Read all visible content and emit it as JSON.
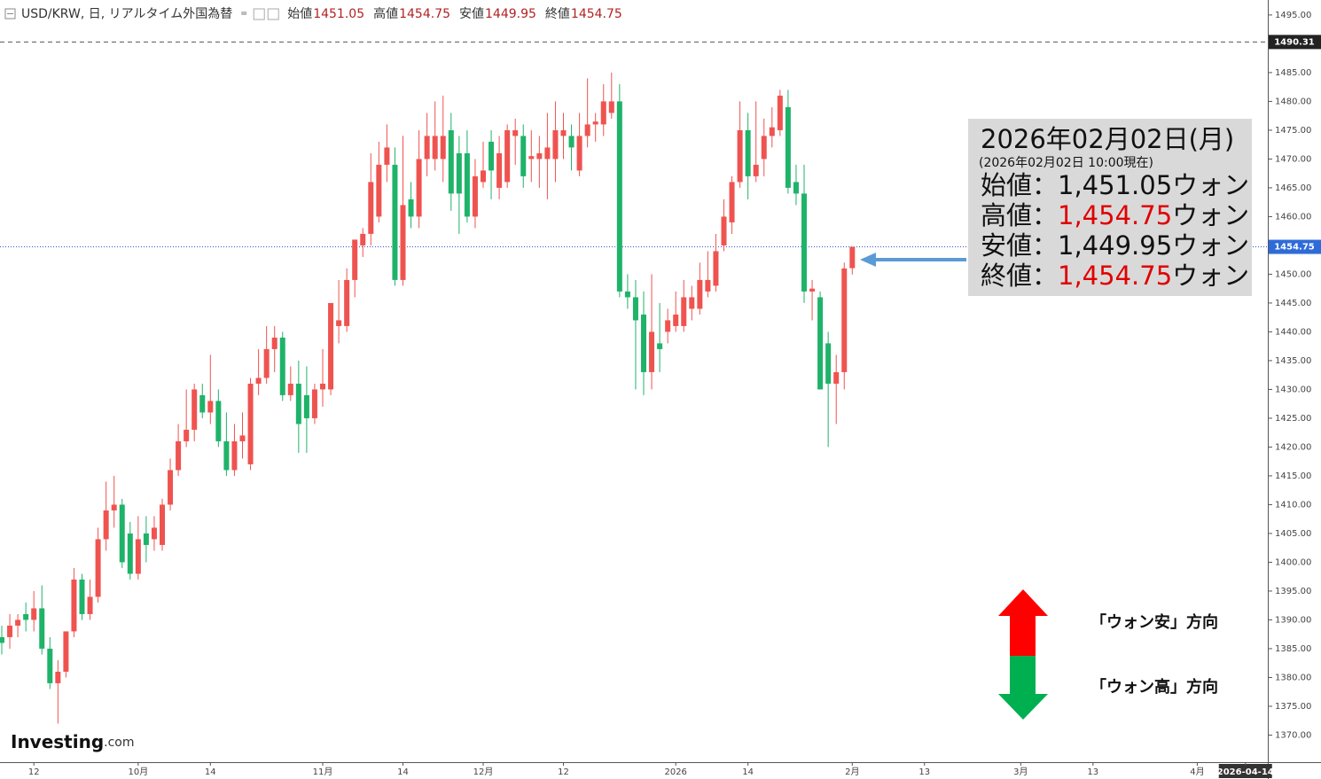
{
  "chart_data": {
    "type": "candlestick",
    "title": "USD/KRW, 日, リアルタイム外国為替",
    "ohlc_header": [
      {
        "label": "始値",
        "value": "1451.05"
      },
      {
        "label": "高値",
        "value": "1454.75"
      },
      {
        "label": "安値",
        "value": "1449.95"
      },
      {
        "label": "終値",
        "value": "1454.75"
      }
    ],
    "up_color": "#ef5350",
    "down_color": "#1fb36a",
    "ylim": [
      1365.3,
      1497.6
    ],
    "yticks": [
      {
        "value": 1370,
        "label": "1370.00"
      },
      {
        "value": 1375,
        "label": "1375.00"
      },
      {
        "value": 1380,
        "label": "1380.00"
      },
      {
        "value": 1385,
        "label": "1385.00"
      },
      {
        "value": 1390,
        "label": "1390.00"
      },
      {
        "value": 1395,
        "label": "1395.00"
      },
      {
        "value": 1400,
        "label": "1400.00"
      },
      {
        "value": 1405,
        "label": "1405.00"
      },
      {
        "value": 1410,
        "label": "1410.00"
      },
      {
        "value": 1415,
        "label": "1415.00"
      },
      {
        "value": 1420,
        "label": "1420.00"
      },
      {
        "value": 1425,
        "label": "1425.00"
      },
      {
        "value": 1430,
        "label": "1430.00"
      },
      {
        "value": 1435,
        "label": "1435.00"
      },
      {
        "value": 1440,
        "label": "1440.00"
      },
      {
        "value": 1445,
        "label": "1445.00"
      },
      {
        "value": 1450,
        "label": "1450.00"
      },
      {
        "value": 1455,
        "label": "1455.00"
      },
      {
        "value": 1460,
        "label": "1460.00"
      },
      {
        "value": 1465,
        "label": "1465.00"
      },
      {
        "value": 1470,
        "label": "1470.00"
      },
      {
        "value": 1475,
        "label": "1475.00"
      },
      {
        "value": 1480,
        "label": "1480.00"
      },
      {
        "value": 1485,
        "label": "1485.00"
      },
      {
        "value": 1490,
        "label": "1490.00"
      },
      {
        "value": 1495,
        "label": "1495.00"
      }
    ],
    "reference_lines": [
      {
        "value": 1490.31,
        "style": "dashed",
        "color": "#555555",
        "label_bg": "#222222"
      },
      {
        "value": 1454.75,
        "style": "dotted",
        "color": "#3a4fd0",
        "label_bg": "#2f6bd8"
      }
    ],
    "categories": [
      null,
      null,
      null,
      null,
      "12",
      null,
      null,
      null,
      null,
      null,
      null,
      null,
      null,
      null,
      null,
      null,
      null,
      "10月",
      null,
      null,
      null,
      null,
      null,
      null,
      null,
      null,
      "14",
      null,
      null,
      null,
      null,
      null,
      null,
      null,
      null,
      null,
      null,
      null,
      null,
      null,
      "11月",
      null,
      null,
      null,
      null,
      null,
      null,
      null,
      null,
      null,
      "14",
      null,
      null,
      null,
      null,
      null,
      null,
      null,
      null,
      null,
      "12月",
      null,
      null,
      null,
      null,
      null,
      null,
      null,
      null,
      null,
      "12",
      null,
      null,
      null,
      null,
      null,
      null,
      null,
      null,
      null,
      null,
      null,
      null,
      null,
      "2026",
      null,
      null,
      null,
      null,
      null,
      null,
      null,
      null,
      "14",
      null,
      null,
      null,
      null,
      null,
      null,
      null,
      null,
      null,
      null,
      null,
      null,
      "2月",
      null,
      null,
      null,
      null,
      null,
      null,
      null,
      null,
      "13",
      null,
      null,
      null,
      null,
      null,
      null,
      null,
      null,
      null,
      null,
      null,
      "3月",
      null,
      null,
      null,
      null,
      null,
      null,
      null,
      null,
      "13",
      null,
      null,
      null,
      null,
      null,
      null,
      null,
      null,
      null,
      null,
      null,
      null,
      "4月",
      null,
      null,
      null,
      null,
      null,
      "2026-04-14"
    ],
    "open": [
      1387,
      1387,
      1389,
      1391,
      1390,
      1392,
      1385,
      1379,
      1381,
      1388,
      1397,
      1391,
      1394,
      1404,
      1409,
      1410,
      1405,
      1398,
      1405,
      1404,
      1403,
      1410,
      1416,
      1421,
      1423,
      1429,
      1426,
      1428,
      1421,
      1416,
      1421,
      1417,
      1431,
      1432,
      1437,
      1439,
      1429,
      1431,
      1429,
      1425,
      1430,
      1430,
      1441,
      1441,
      1449,
      1455,
      1457,
      1460,
      1469,
      1469,
      1449,
      1463,
      1460,
      1470,
      1470,
      1470,
      1475,
      1471,
      1471,
      1460,
      1466,
      1473,
      1465,
      1466,
      1474,
      1474,
      1470,
      1470,
      1470,
      1470,
      1474,
      1474,
      1468,
      1474,
      1476,
      1476,
      1478,
      1480,
      1447,
      1446,
      1443,
      1433,
      1438,
      1440,
      1441,
      1441,
      1444,
      1444,
      1447,
      1448,
      1455,
      1459,
      1466,
      1475,
      1467,
      1470,
      1474,
      1475,
      1479,
      1466,
      1464,
      1447,
      1446,
      1438,
      1431,
      1433,
      1451.05,
      null,
      null,
      null,
      null,
      null,
      null,
      null,
      null,
      null,
      null,
      null,
      null,
      null,
      null,
      null,
      null,
      null,
      null,
      null,
      null,
      null,
      null,
      null,
      null,
      null,
      null,
      null,
      null,
      null,
      null,
      null,
      null,
      null,
      null,
      null,
      null,
      null,
      null,
      null,
      null,
      null,
      null,
      null,
      null,
      null,
      null,
      null,
      null,
      null
    ],
    "high": [
      1389,
      1391,
      1391,
      1393,
      1395,
      1396,
      1387,
      1383,
      1388,
      1399,
      1398,
      1397,
      1406,
      1414,
      1415,
      1411,
      1407,
      1408,
      1408,
      1408,
      1411,
      1418,
      1424,
      1430,
      1431,
      1431,
      1436,
      1430,
      1426,
      1424,
      1426,
      1432,
      1437,
      1441,
      1441,
      1440,
      1434,
      1435,
      1434,
      1431,
      1437,
      1445,
      1449,
      1451,
      1456,
      1458,
      1471,
      1473,
      1476,
      1472,
      1474,
      1466,
      1475,
      1478,
      1480,
      1481,
      1478,
      1474,
      1475,
      1470,
      1473,
      1475,
      1474,
      1476,
      1477,
      1476,
      1475,
      1474,
      1478,
      1480,
      1478,
      1476,
      1478,
      1484,
      1478,
      1483,
      1485,
      1483,
      1450,
      1449,
      1447,
      1450,
      1445,
      1444,
      1447,
      1449,
      1448,
      1452,
      1454,
      1457,
      1463,
      1467,
      1480,
      1478,
      1480,
      1477,
      1479,
      1482,
      1482,
      1469,
      1469,
      1449,
      1447,
      1440,
      1436,
      1452,
      1454.75,
      null,
      null,
      null,
      null,
      null,
      null,
      null,
      null,
      null,
      null,
      null,
      null,
      null,
      null,
      null,
      null,
      null,
      null,
      null,
      null,
      null,
      null,
      null,
      null,
      null,
      null,
      null,
      null,
      null,
      null,
      null,
      null,
      null,
      null,
      null,
      null,
      null,
      null,
      null,
      null,
      null,
      null,
      null,
      null,
      null,
      null,
      null,
      null,
      null
    ],
    "low": [
      1384,
      1385,
      1387,
      1388,
      1388,
      1384,
      1378,
      1372,
      1380,
      1387,
      1390,
      1390,
      1393,
      1402,
      1406,
      1399,
      1397,
      1397,
      1400,
      1402,
      1402,
      1409,
      1415,
      1420,
      1421,
      1425,
      1424,
      1420,
      1415,
      1415,
      1418,
      1416,
      1429,
      1431,
      1433,
      1428,
      1428,
      1419,
      1419,
      1424,
      1427,
      1429,
      1438,
      1440,
      1446,
      1453,
      1455,
      1459,
      1466,
      1448,
      1448,
      1458,
      1458,
      1467,
      1468,
      1466,
      1461,
      1457,
      1459,
      1458,
      1465,
      1463,
      1463,
      1465,
      1469,
      1465,
      1466,
      1465,
      1463,
      1466,
      1470,
      1468,
      1467,
      1472,
      1473,
      1474,
      1477,
      1446,
      1444,
      1430,
      1429,
      1430,
      1433,
      1438,
      1440,
      1440,
      1442,
      1443,
      1446,
      1447,
      1454,
      1457,
      1465,
      1463,
      1466,
      1467,
      1472,
      1474,
      1464,
      1462,
      1445,
      1442,
      1430,
      1420,
      1424,
      1430,
      1449.95,
      null,
      null,
      null,
      null,
      null,
      null,
      null,
      null,
      null,
      null,
      null,
      null,
      null,
      null,
      null,
      null,
      null,
      null,
      null,
      null,
      null,
      null,
      null,
      null,
      null,
      null,
      null,
      null,
      null,
      null,
      null,
      null,
      null,
      null,
      null,
      null,
      null,
      null,
      null,
      null,
      null,
      null,
      null,
      null,
      null,
      null,
      null,
      null,
      null
    ],
    "close": [
      1386,
      1389,
      1390,
      1390,
      1392,
      1385,
      1379,
      1381,
      1388,
      1397,
      1391,
      1394,
      1404,
      1409,
      1410,
      1400,
      1398,
      1404,
      1403,
      1406,
      1410,
      1416,
      1421,
      1423,
      1430,
      1426,
      1428,
      1421,
      1416,
      1421,
      1422,
      1431,
      1432,
      1437,
      1439,
      1429,
      1431,
      1424,
      1425,
      1430,
      1431,
      1445,
      1442,
      1449,
      1456,
      1457,
      1466,
      1469,
      1472,
      1449,
      1462,
      1460,
      1470,
      1474,
      1474,
      1474,
      1464,
      1464,
      1460,
      1467,
      1468,
      1468,
      1471,
      1475,
      1475,
      1467,
      1470.5,
      1471,
      1472,
      1475,
      1475,
      1472,
      1474,
      1476,
      1476.5,
      1480,
      1480,
      1447,
      1446,
      1442,
      1433,
      1440,
      1437,
      1442,
      1443,
      1446,
      1446,
      1449,
      1449,
      1454,
      1460,
      1466,
      1475,
      1467,
      1469,
      1474,
      1475.5,
      1481,
      1465,
      1464,
      1447,
      1447.5,
      1430,
      1431,
      1433,
      1451,
      1454.75,
      null,
      null,
      null,
      null,
      null,
      null,
      null,
      null,
      null,
      null,
      null,
      null,
      null,
      null,
      null,
      null,
      null,
      null,
      null,
      null,
      null,
      null,
      null,
      null,
      null,
      null,
      null,
      null,
      null,
      null,
      null,
      null,
      null,
      null,
      null,
      null,
      null,
      null,
      null,
      null,
      null,
      null,
      null,
      null,
      null,
      null,
      null,
      null,
      null
    ],
    "annotations": [
      "「ウォン安」方向",
      "「ウォン高」方向"
    ],
    "logo": {
      "name": "Investing",
      "suffix": ".com"
    }
  },
  "info_box": {
    "date": "2026年02月02日(月)",
    "as_of": "(2026年02月02日 10:00現在)",
    "rows": [
      {
        "label": "始値：",
        "value": "1,451.05",
        "unit": "ウォン",
        "color": "#111111"
      },
      {
        "label": "高値：",
        "value": "1,454.75",
        "unit": "ウォン",
        "color": "#e00000"
      },
      {
        "label": "安値：",
        "value": "1,449.95",
        "unit": "ウォン",
        "color": "#111111"
      },
      {
        "label": "終値：",
        "value": "1,454.75",
        "unit": "ウォン",
        "color": "#e00000"
      }
    ]
  }
}
